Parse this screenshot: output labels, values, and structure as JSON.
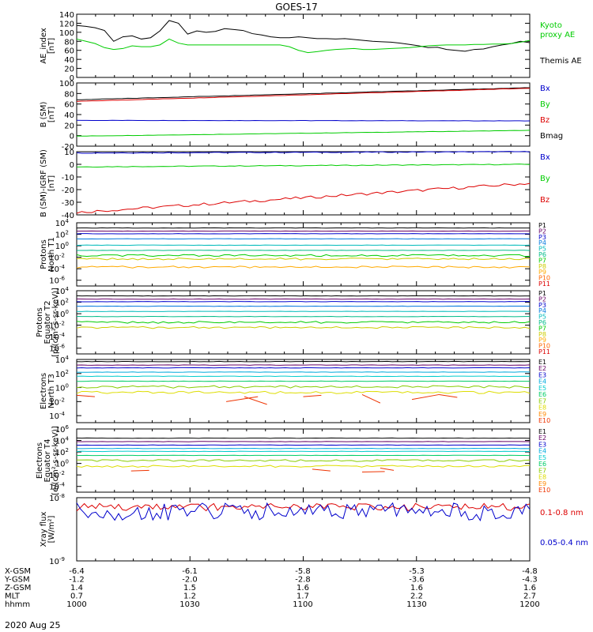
{
  "title": "GOES-17",
  "date": "2020 Aug 25",
  "x_axis": {
    "ticks": [
      "1000",
      "1030",
      "1100",
      "1130",
      "1200"
    ],
    "rows": [
      {
        "label": "X-GSM",
        "values": [
          "-6.4",
          "-6.1",
          "-5.8",
          "-5.3",
          "-4.8"
        ]
      },
      {
        "label": "Y-GSM",
        "values": [
          "-1.2",
          "-2.0",
          "-2.8",
          "-3.6",
          "-4.3"
        ]
      },
      {
        "label": "Z-GSM",
        "values": [
          "1.4",
          "1.5",
          "1.6",
          "1.6",
          "1.6"
        ]
      },
      {
        "label": "MLT",
        "values": [
          "0.7",
          "1.2",
          "1.7",
          "2.2",
          "2.7"
        ]
      },
      {
        "label": "hhmm",
        "values": [
          "1000",
          "1030",
          "1100",
          "1130",
          "1200"
        ]
      }
    ]
  },
  "colors": {
    "black": "#000000",
    "green": "#00cc00",
    "blue": "#0000cc",
    "red": "#dd0000",
    "p": [
      "#000000",
      "#660066",
      "#0000cc",
      "#0077dd",
      "#00bbbb",
      "#00bb88",
      "#00cc00",
      "#cccc00",
      "#ffaa00",
      "#ff6600",
      "#dd0000"
    ],
    "e": [
      "#000000",
      "#660066",
      "#0000cc",
      "#00aadd",
      "#00cccc",
      "#00cc66",
      "#88cc00",
      "#dddd00",
      "#ff8800",
      "#ee3300",
      "#dd0000"
    ]
  },
  "chart_data": [
    {
      "type": "line",
      "id": "ae",
      "ylabel": [
        "AE_index",
        "[nT]"
      ],
      "ylim": [
        0,
        140
      ],
      "yticks": [
        "0",
        "20",
        "40",
        "60",
        "80",
        "100",
        "120",
        "140"
      ],
      "legend": [
        {
          "text": "Kyoto",
          "color": "green"
        },
        {
          "text": "proxy AE",
          "color": "green"
        },
        {
          "text": "Themis AE",
          "color": "black"
        }
      ],
      "series": [
        {
          "name": "Themis AE",
          "color": "black",
          "values": [
            115,
            113,
            110,
            104,
            80,
            90,
            92,
            85,
            88,
            103,
            126,
            120,
            96,
            103,
            100,
            102,
            108,
            106,
            104,
            97,
            94,
            90,
            88,
            88,
            90,
            88,
            86,
            86,
            85,
            86,
            84,
            82,
            80,
            79,
            78,
            76,
            73,
            70,
            66,
            67,
            62,
            60,
            58,
            62,
            63,
            68,
            72,
            75,
            80,
            77
          ]
        },
        {
          "name": "Kyoto proxy AE",
          "color": "green",
          "values": [
            85,
            80,
            75,
            66,
            62,
            64,
            70,
            68,
            68,
            72,
            85,
            76,
            72,
            72,
            72,
            72,
            72,
            72,
            72,
            72,
            72,
            72,
            72,
            68,
            60,
            55,
            57,
            60,
            62,
            63,
            64,
            62,
            62,
            63,
            64,
            65,
            66,
            68,
            70,
            71,
            72,
            72,
            72,
            73,
            73,
            74,
            74,
            75,
            78,
            82
          ]
        }
      ]
    },
    {
      "type": "line",
      "id": "b_sm",
      "ylabel": [
        "B (SM)",
        "[nT]"
      ],
      "ylim": [
        -20,
        100
      ],
      "yticks": [
        "-20",
        "0",
        "20",
        "40",
        "60",
        "80",
        "100"
      ],
      "legend": [
        {
          "text": "Bx",
          "color": "blue"
        },
        {
          "text": "By",
          "color": "green"
        },
        {
          "text": "Bz",
          "color": "red"
        },
        {
          "text": "Bmag",
          "color": "black"
        }
      ],
      "series": [
        {
          "name": "Bmag",
          "color": "black",
          "start": 68,
          "end": 91
        },
        {
          "name": "Bz",
          "color": "red",
          "start": 65,
          "end": 90
        },
        {
          "name": "Bx",
          "color": "blue",
          "start": 29,
          "end": 28
        },
        {
          "name": "By",
          "color": "green",
          "start": -1,
          "end": 10
        }
      ]
    },
    {
      "type": "line",
      "id": "b_igrf",
      "ylabel": [
        "B (SM)-IGRF (SM)",
        "[nT]"
      ],
      "ylim": [
        -40,
        10
      ],
      "yticks": [
        "-40",
        "-30",
        "-20",
        "-10",
        "0",
        "10"
      ],
      "legend": [
        {
          "text": "Bx",
          "color": "blue"
        },
        {
          "text": "By",
          "color": "green"
        },
        {
          "text": "Bz",
          "color": "red"
        }
      ],
      "series": [
        {
          "name": "Bx",
          "color": "blue",
          "start": 9,
          "end": 10
        },
        {
          "name": "By",
          "color": "green",
          "start": -2,
          "end": 0
        },
        {
          "name": "Bz",
          "color": "red",
          "start": -38,
          "end": -15
        }
      ]
    },
    {
      "type": "line",
      "scale": "log",
      "id": "protons_t1",
      "ylabel": [
        "Protons",
        "North T1"
      ],
      "ylim_exp": [
        -7,
        4
      ],
      "yticks": [
        "10^4",
        "10^2",
        "10^0",
        "10^-2",
        "10^-4",
        "10^-6"
      ],
      "legend": [
        "P1",
        "P2",
        "P3",
        "P4",
        "P5",
        "P6",
        "P7",
        "P8",
        "P9",
        "P10",
        "P11"
      ],
      "levels_exp": [
        3.1,
        2.55,
        2.1,
        1.2,
        0.1,
        -0.8,
        -1.7,
        -2.3,
        -3.7
      ]
    },
    {
      "type": "line",
      "scale": "log",
      "id": "protons_t2",
      "ylabel": [
        "Protons",
        "Equator T2",
        "[p/(cm²-s-sr-keV)]"
      ],
      "ylim_exp": [
        -7,
        4
      ],
      "yticks": [
        "10^4",
        "10^2",
        "10^0",
        "10^-2",
        "10^-4",
        "10^-6"
      ],
      "legend": [
        "P1",
        "P2",
        "P3",
        "P4",
        "P5",
        "P6",
        "P7",
        "P8",
        "P9",
        "P10",
        "P11"
      ],
      "levels_exp": [
        3.1,
        2.55,
        2.1,
        1.3,
        0.4,
        -0.5,
        -1.5,
        -2.4
      ]
    },
    {
      "type": "line",
      "scale": "log",
      "id": "electrons_t3",
      "ylabel": [
        "Electrons",
        "North T3"
      ],
      "ylim_exp": [
        -5,
        4
      ],
      "yticks": [
        "10^4",
        "10^2",
        "10^0",
        "10^-2",
        "10^-4"
      ],
      "legend": [
        "E1",
        "E2",
        "E3",
        "E4",
        "E5",
        "E6",
        "E7",
        "E8",
        "E9",
        "E10"
      ],
      "levels_exp": [
        3.7,
        3.2,
        2.8,
        2.2,
        1.6,
        0.9,
        0.1,
        -0.7
      ]
    },
    {
      "type": "line",
      "scale": "log",
      "id": "electrons_t4",
      "ylabel": [
        "Electrons",
        "Equator T4",
        "[e/(cm²-s-sr-keV)]"
      ],
      "ylim_exp": [
        -5,
        6
      ],
      "yticks": [
        "10^6",
        "10^4",
        "10^2",
        "10^0",
        "10^-2",
        "10^-4"
      ],
      "legend": [
        "E1",
        "E2",
        "E3",
        "E4",
        "E5",
        "E6",
        "E7",
        "E8",
        "E9",
        "E10"
      ],
      "levels_exp": [
        4.4,
        3.8,
        3.2,
        2.6,
        2.1,
        1.4,
        0.5,
        -0.5
      ]
    },
    {
      "type": "line",
      "scale": "log",
      "id": "xray",
      "ylabel": [
        "Xray flux",
        "[W/m²]"
      ],
      "ylim_exp": [
        -9,
        -8
      ],
      "yticks": [
        "10^-8",
        "10^-9"
      ],
      "legend": [
        {
          "text": "0.1-0.8 nm",
          "color": "red"
        },
        {
          "text": "0.05-0.4 nm",
          "color": "blue"
        }
      ],
      "series": [
        {
          "name": "0.1-0.8 nm",
          "color": "red",
          "level_exp": -8.15
        },
        {
          "name": "0.05-0.4 nm",
          "color": "blue",
          "level_exp": -8.22
        }
      ]
    }
  ]
}
